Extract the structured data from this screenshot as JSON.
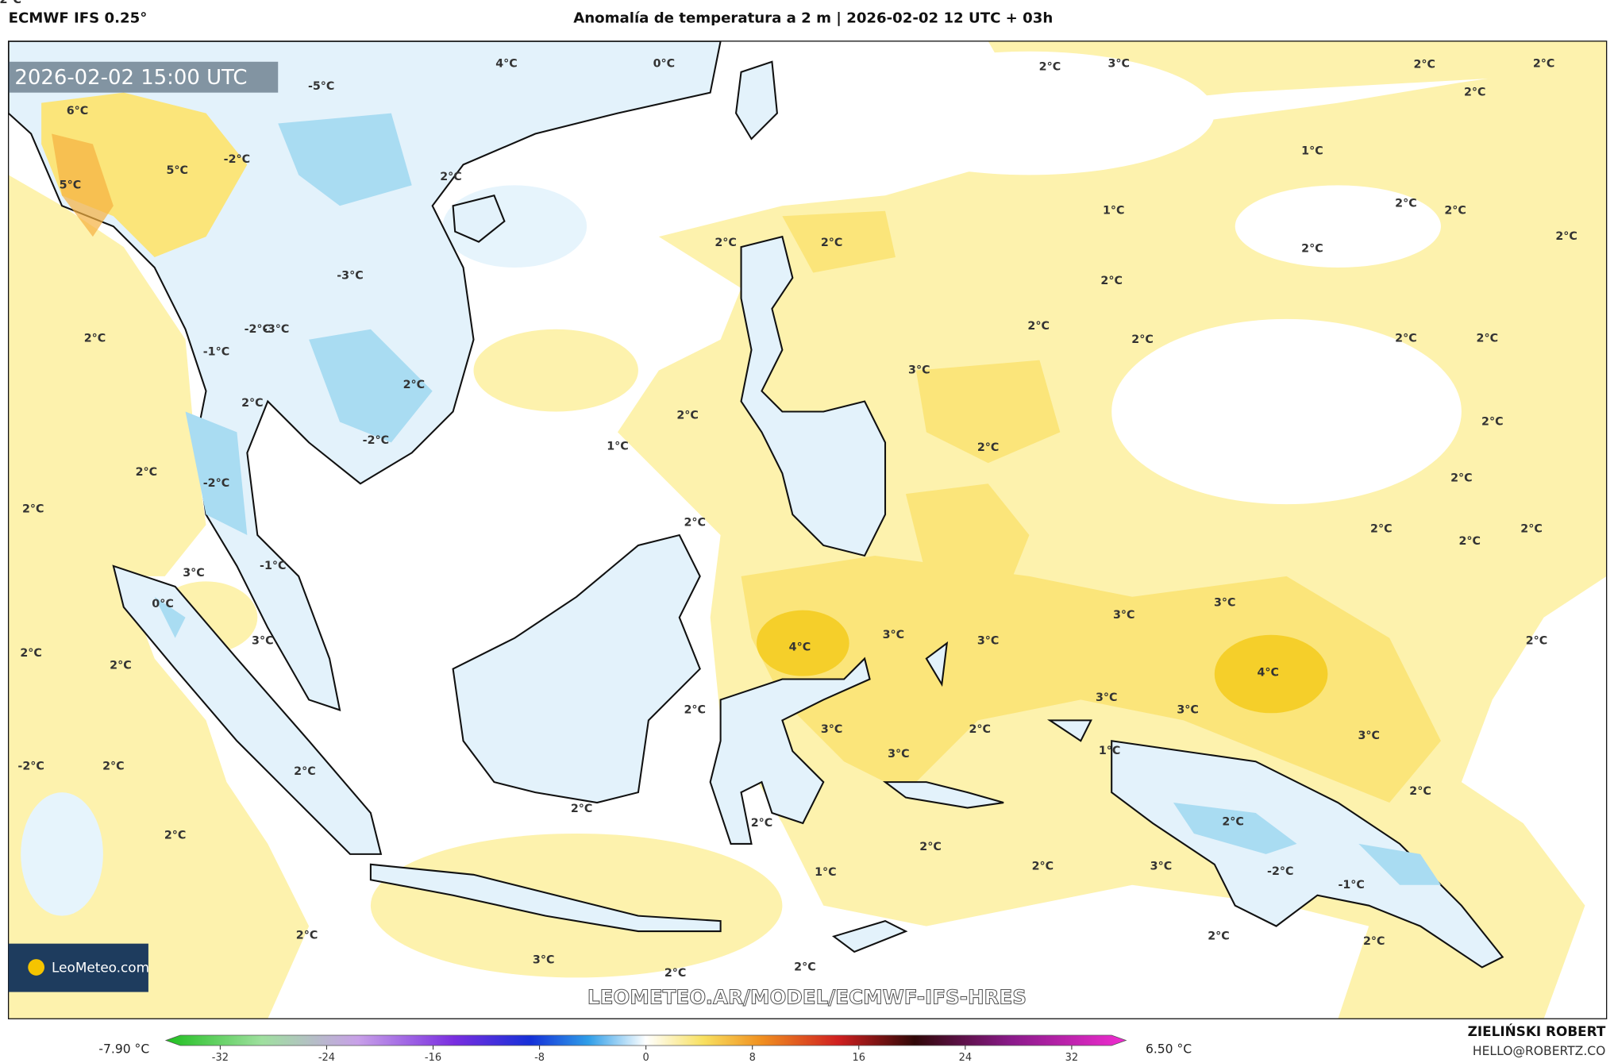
{
  "header": {
    "model": "ECMWF IFS 0.25°",
    "title": "Anomalía de temperatura a 2 m | 2026-02-02 12 UTC + 03h"
  },
  "timestamp": "2026-02-02 15:00 UTC",
  "contour_labels": [
    "6°C",
    "5°C",
    "5°C",
    "4°C",
    "0°C",
    "-5°C",
    "-2°C",
    "2°C",
    "-3°C",
    "-3°C",
    "2°C",
    "-1°C",
    "-2°C",
    "2°C",
    "-2°C",
    "2°C",
    "2°C",
    "-2°C",
    "2°C",
    "1°C",
    "-1°C",
    "3°C",
    "0°C",
    "3°C",
    "2°C",
    "2°C",
    "2°C",
    "-2°C",
    "2°C",
    "2°C",
    "2°C",
    "1°C",
    "2°C",
    "3°C",
    "2°C",
    "2°C",
    "2°C",
    "2°C",
    "2°C",
    "2°C",
    "3°C",
    "1°C",
    "2°C",
    "2°C",
    "4°C",
    "3°C",
    "3°C",
    "3°C",
    "3°C",
    "2°C",
    "3°C",
    "2°C",
    "2°C",
    "2°C",
    "1°C",
    "2°C",
    "2°C",
    "3°C",
    "2°C",
    "2°C",
    "2°C",
    "2°C",
    "4°C",
    "3°C",
    "3°C",
    "3°C",
    "3°C",
    "2°C",
    "2°C",
    "-1°C",
    "-2°C",
    "2°C",
    "2°C",
    "2°C",
    "2°C",
    "2°C",
    "2°C",
    "2°C",
    "2°C",
    "2°C",
    "2°C",
    "2°C",
    "2°C",
    "2°C",
    "2°C",
    "2°C",
    "2°C",
    "3°C",
    "1°C",
    "2°C"
  ],
  "colorbar": {
    "min_label": "-7.90 °C",
    "max_label": "6.50 °C",
    "lim": [
      -35,
      35
    ],
    "ticks": [
      -32,
      -24,
      -16,
      -8,
      0,
      8,
      16,
      24,
      32
    ]
  },
  "logo": "LeoMeteo.com",
  "watermark": "LEOMETEO.AR/MODEL/ECMWF-IFS-HRES",
  "credit": {
    "name": "ZIELIŃSKI ROBERT",
    "email": "HELLO@ROBERTZ.CO"
  }
}
